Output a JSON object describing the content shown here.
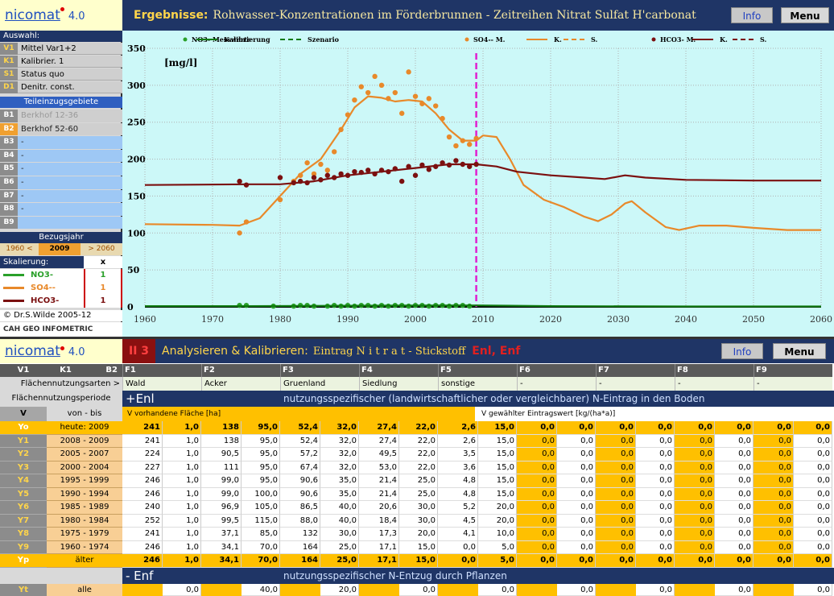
{
  "sidebar": {
    "logo": "nicomat",
    "version": "4.0",
    "auswahl": "Auswahl:",
    "selection": [
      [
        "V1",
        "Mittel Var1+2"
      ],
      [
        "K1",
        "Kalibrier. 1"
      ],
      [
        "S1",
        "Status quo"
      ],
      [
        "D1",
        "Denitr. const."
      ]
    ],
    "teil": "Teileinzugsgebiete",
    "areas": [
      [
        "B1",
        "Berkhof 12-36"
      ],
      [
        "B2",
        "Berkhof 52-60"
      ],
      [
        "B3",
        "-"
      ],
      [
        "B4",
        "-"
      ],
      [
        "B5",
        "-"
      ],
      [
        "B6",
        "-"
      ],
      [
        "B7",
        "-"
      ],
      [
        "B8",
        "-"
      ],
      [
        "B9",
        ""
      ]
    ],
    "bezugsjahr": "Bezugsjahr",
    "years": [
      "1960 <",
      "2009",
      "> 2060"
    ],
    "skal": "Skalierung:",
    "skal_head": "x",
    "scaling": [
      [
        "NO3-",
        "1"
      ],
      [
        "SO4--",
        "1"
      ],
      [
        "HCO3-",
        "1"
      ]
    ],
    "copyright": "© Dr.S.Wilde 2005-12",
    "org": "CAH GEO INFOMETRIC"
  },
  "topbar": {
    "title_label": "Ergebnisse:",
    "buttons": [
      "Info",
      "Menu"
    ]
  },
  "chart_data": {
    "type": "line",
    "title": "Rohwasser-Konzentrationen im Förderbrunnen - Zeitreihen Nitrat Sulfat H'carbonat",
    "unit": "[mg/l]",
    "xlim": [
      1960,
      2060
    ],
    "xticks": [
      1960,
      1970,
      1980,
      1990,
      2000,
      2010,
      2020,
      2030,
      2040,
      2050,
      2060
    ],
    "ylim": [
      0,
      350
    ],
    "yticks": [
      0,
      50,
      100,
      150,
      200,
      250,
      300,
      350
    ],
    "grid": true,
    "marker_x": 2009,
    "marker_color": "#e020d0",
    "series": [
      {
        "name": "NO3- Messwerte",
        "color": "#2aa02a",
        "style": "dots",
        "legend_symbol": "dot",
        "x": [
          1974,
          1975,
          1979,
          1982,
          1983,
          1984,
          1985,
          1987,
          1988,
          1989,
          1990,
          1991,
          1992,
          1993,
          1994,
          1995,
          1996,
          1997,
          1998,
          1999,
          2000,
          2001,
          2002,
          2003,
          2004,
          2005,
          2006,
          2007,
          2008
        ],
        "values": [
          2,
          2,
          1,
          1,
          2,
          2,
          1,
          1,
          2,
          1,
          2,
          1,
          2,
          2,
          1,
          2,
          1,
          2,
          2,
          1,
          2,
          2,
          1,
          2,
          2,
          1,
          2,
          2,
          1
        ]
      },
      {
        "name": "Kalibrierung",
        "color": "#107a10",
        "style": "line",
        "legend_symbol": "line",
        "x": [
          1960,
          1975,
          1990,
          2009
        ],
        "values": [
          1,
          1,
          1.5,
          2
        ]
      },
      {
        "name": "Szenario",
        "color": "#107a10",
        "style": "line",
        "legend_symbol": "dash",
        "x": [
          2009,
          2020,
          2040,
          2060
        ],
        "values": [
          2,
          1,
          0.5,
          0.5
        ]
      },
      {
        "name": "SO4-- M.",
        "color": "#e8892a",
        "style": "dots",
        "legend_symbol": "dot",
        "x": [
          1974,
          1975,
          1980,
          1982,
          1983,
          1984,
          1985,
          1986,
          1987,
          1988,
          1989,
          1990,
          1991,
          1992,
          1993,
          1994,
          1995,
          1996,
          1997,
          1998,
          1999,
          2000,
          2001,
          2002,
          2003,
          2004,
          2005,
          2006,
          2007,
          2008,
          2009
        ],
        "values": [
          100,
          115,
          145,
          170,
          178,
          195,
          180,
          193,
          185,
          210,
          240,
          260,
          280,
          298,
          290,
          312,
          300,
          282,
          290,
          262,
          318,
          285,
          275,
          282,
          272,
          255,
          230,
          218,
          225,
          220,
          228
        ]
      },
      {
        "name": "K.",
        "color": "#e8892a",
        "style": "line",
        "legend_symbol": "line",
        "x": [
          1960,
          1970,
          1974,
          1977,
          1980,
          1983,
          1986,
          1989,
          1991,
          1993,
          1995,
          1997,
          1999,
          2001,
          2003,
          2005,
          2007,
          2009
        ],
        "values": [
          112,
          111,
          110,
          120,
          150,
          180,
          200,
          240,
          270,
          285,
          283,
          278,
          280,
          278,
          262,
          240,
          225,
          225
        ]
      },
      {
        "name": "S.",
        "color": "#e8892a",
        "style": "line",
        "legend_symbol": "dash",
        "x": [
          2009,
          2010,
          2012,
          2014,
          2016,
          2019,
          2022,
          2025,
          2027,
          2029,
          2031,
          2032,
          2034,
          2037,
          2039,
          2042,
          2046,
          2050,
          2055,
          2060
        ],
        "values": [
          225,
          232,
          230,
          200,
          165,
          145,
          135,
          122,
          116,
          125,
          140,
          143,
          128,
          108,
          104,
          110,
          110,
          107,
          104,
          104
        ]
      },
      {
        "name": "HCO3- M.",
        "color": "#7b1010",
        "style": "dots",
        "legend_symbol": "dot",
        "x": [
          1974,
          1975,
          1980,
          1982,
          1983,
          1984,
          1985,
          1986,
          1987,
          1988,
          1989,
          1990,
          1991,
          1992,
          1993,
          1994,
          1995,
          1996,
          1997,
          1998,
          1999,
          2000,
          2001,
          2002,
          2003,
          2004,
          2005,
          2006,
          2007,
          2008,
          2009
        ],
        "values": [
          170,
          165,
          175,
          168,
          170,
          168,
          175,
          172,
          178,
          175,
          180,
          178,
          183,
          182,
          185,
          180,
          185,
          183,
          187,
          170,
          190,
          178,
          192,
          186,
          190,
          195,
          192,
          198,
          193,
          190,
          193
        ]
      },
      {
        "name": "K.",
        "color": "#7b1010",
        "style": "line",
        "legend_symbol": "line",
        "x": [
          1960,
          1975,
          1980,
          1985,
          1990,
          1995,
          2000,
          2005,
          2009
        ],
        "values": [
          165,
          166,
          166,
          170,
          178,
          183,
          188,
          193,
          193
        ]
      },
      {
        "name": "S.",
        "color": "#7b1010",
        "style": "line",
        "legend_symbol": "dash",
        "x": [
          2009,
          2012,
          2015,
          2020,
          2025,
          2028,
          2031,
          2034,
          2040,
          2050,
          2060
        ],
        "values": [
          193,
          190,
          183,
          178,
          175,
          173,
          178,
          175,
          172,
          171,
          171
        ]
      }
    ]
  },
  "table": {
    "logo": "nicomat",
    "version": "4.0",
    "step": "II 3",
    "title": "Analysieren & Kalibrieren:",
    "subtitle": "Eintrag  N i t r a t - Stickstoff",
    "tag": "Enl, Enf",
    "buttons": [
      "Info",
      "Menu"
    ],
    "col_heads": [
      "V1",
      "K1",
      "B2"
    ],
    "groups": [
      "F1",
      "F2",
      "F3",
      "F4",
      "F5",
      "F6",
      "F7",
      "F8",
      "F9"
    ],
    "fna_label": "Flächennutzungsarten >",
    "fna": [
      "Wald",
      "Acker",
      "Gruenland",
      "Siedlung",
      "sonstige",
      "-",
      "-",
      "-",
      "-"
    ],
    "period_label": "Flächennutzungsperiode",
    "enl": "+Enl",
    "enl_desc": "nutzungsspezifischer (landwirtschaftlicher oder vergleichbarer) N-Eintrag in den Boden",
    "v_head": "V",
    "vonbis_head": "von - bis",
    "area_head": "V  vorhandene Fläche [ha]",
    "rate_head": "V  gewählter Eintragswert [kg/(ha*a)]",
    "rows": [
      {
        "id": "Yo",
        "period": "heute:  2009",
        "cells": [
          "241",
          "1,0",
          "138",
          "95,0",
          "52,4",
          "32,0",
          "27,4",
          "22,0",
          "2,6",
          "15,0",
          "0,0",
          "0,0",
          "0,0",
          "0,0",
          "0,0",
          "0,0",
          "0,0",
          "0,0"
        ]
      },
      {
        "id": "Y1",
        "period": "2008 - 2009",
        "cells": [
          "241",
          "1,0",
          "138",
          "95,0",
          "52,4",
          "32,0",
          "27,4",
          "22,0",
          "2,6",
          "15,0",
          "0,0",
          "0,0",
          "0,0",
          "0,0",
          "0,0",
          "0,0",
          "0,0",
          "0,0"
        ]
      },
      {
        "id": "Y2",
        "period": "2005 - 2007",
        "cells": [
          "224",
          "1,0",
          "90,5",
          "95,0",
          "57,2",
          "32,0",
          "49,5",
          "22,0",
          "3,5",
          "15,0",
          "0,0",
          "0,0",
          "0,0",
          "0,0",
          "0,0",
          "0,0",
          "0,0",
          "0,0"
        ]
      },
      {
        "id": "Y3",
        "period": "2000 - 2004",
        "cells": [
          "227",
          "1,0",
          "111",
          "95,0",
          "67,4",
          "32,0",
          "53,0",
          "22,0",
          "3,6",
          "15,0",
          "0,0",
          "0,0",
          "0,0",
          "0,0",
          "0,0",
          "0,0",
          "0,0",
          "0,0"
        ]
      },
      {
        "id": "Y4",
        "period": "1995 - 1999",
        "cells": [
          "246",
          "1,0",
          "99,0",
          "95,0",
          "90,6",
          "35,0",
          "21,4",
          "25,0",
          "4,8",
          "15,0",
          "0,0",
          "0,0",
          "0,0",
          "0,0",
          "0,0",
          "0,0",
          "0,0",
          "0,0"
        ]
      },
      {
        "id": "Y5",
        "period": "1990 - 1994",
        "cells": [
          "246",
          "1,0",
          "99,0",
          "100,0",
          "90,6",
          "35,0",
          "21,4",
          "25,0",
          "4,8",
          "15,0",
          "0,0",
          "0,0",
          "0,0",
          "0,0",
          "0,0",
          "0,0",
          "0,0",
          "0,0"
        ]
      },
      {
        "id": "Y6",
        "period": "1985 - 1989",
        "cells": [
          "240",
          "1,0",
          "96,9",
          "105,0",
          "86,5",
          "40,0",
          "20,6",
          "30,0",
          "5,2",
          "20,0",
          "0,0",
          "0,0",
          "0,0",
          "0,0",
          "0,0",
          "0,0",
          "0,0",
          "0,0"
        ]
      },
      {
        "id": "Y7",
        "period": "1980 - 1984",
        "cells": [
          "252",
          "1,0",
          "99,5",
          "115,0",
          "88,0",
          "40,0",
          "18,4",
          "30,0",
          "4,5",
          "20,0",
          "0,0",
          "0,0",
          "0,0",
          "0,0",
          "0,0",
          "0,0",
          "0,0",
          "0,0"
        ]
      },
      {
        "id": "Y8",
        "period": "1975 - 1979",
        "cells": [
          "241",
          "1,0",
          "37,1",
          "85,0",
          "132",
          "30,0",
          "17,3",
          "20,0",
          "4,1",
          "10,0",
          "0,0",
          "0,0",
          "0,0",
          "0,0",
          "0,0",
          "0,0",
          "0,0",
          "0,0"
        ]
      },
      {
        "id": "Y9",
        "period": "1960 - 1974",
        "cells": [
          "246",
          "1,0",
          "34,1",
          "70,0",
          "164",
          "25,0",
          "17,1",
          "15,0",
          "0,0",
          "5,0",
          "0,0",
          "0,0",
          "0,0",
          "0,0",
          "0,0",
          "0,0",
          "0,0",
          "0,0"
        ]
      },
      {
        "id": "Yp",
        "period": "älter",
        "cells": [
          "246",
          "1,0",
          "34,1",
          "70,0",
          "164",
          "25,0",
          "17,1",
          "15,0",
          "0,0",
          "5,0",
          "0,0",
          "0,0",
          "0,0",
          "0,0",
          "0,0",
          "0,0",
          "0,0",
          "0,0"
        ]
      }
    ],
    "enf": "- Enf",
    "enf_desc": "nutzungsspezifischer N-Entzug durch Pflanzen",
    "yt": {
      "id": "Yt",
      "period": "alle",
      "cells": [
        "0,0",
        "40,0",
        "20,0",
        "0,0",
        "0,0",
        "0,0",
        "0,0",
        "0,0",
        "0,0"
      ]
    }
  }
}
